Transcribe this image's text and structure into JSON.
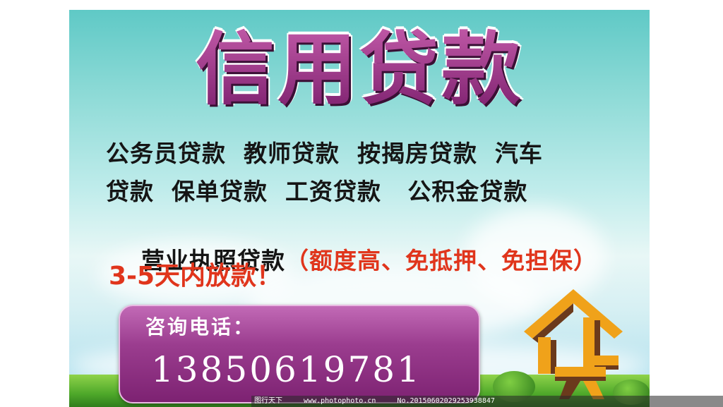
{
  "poster": {
    "title": "信用贷款",
    "line1": "公务员贷款  教师贷款  按揭房贷款  汽车",
    "line2": "贷款  保单贷款  工资贷款   公积金贷款",
    "line3_main": "营业执照贷款",
    "line3_note": "（额度高、免抵押、免担保）",
    "release": "3-5天内放款！",
    "contact_label": "咨询电话：",
    "phone": "13850619781"
  },
  "logo": {
    "name": "house-dai-logo",
    "primary": "#f0a21a",
    "shade": "#6b3a1c"
  },
  "colors": {
    "title": "#8a2a7c",
    "accent_red": "#e0351c",
    "panel": "#9b3d8f"
  },
  "watermark": {
    "left": "图行天下",
    "center": "www.photophoto.cn",
    "right": "No.20150602029253938847"
  }
}
